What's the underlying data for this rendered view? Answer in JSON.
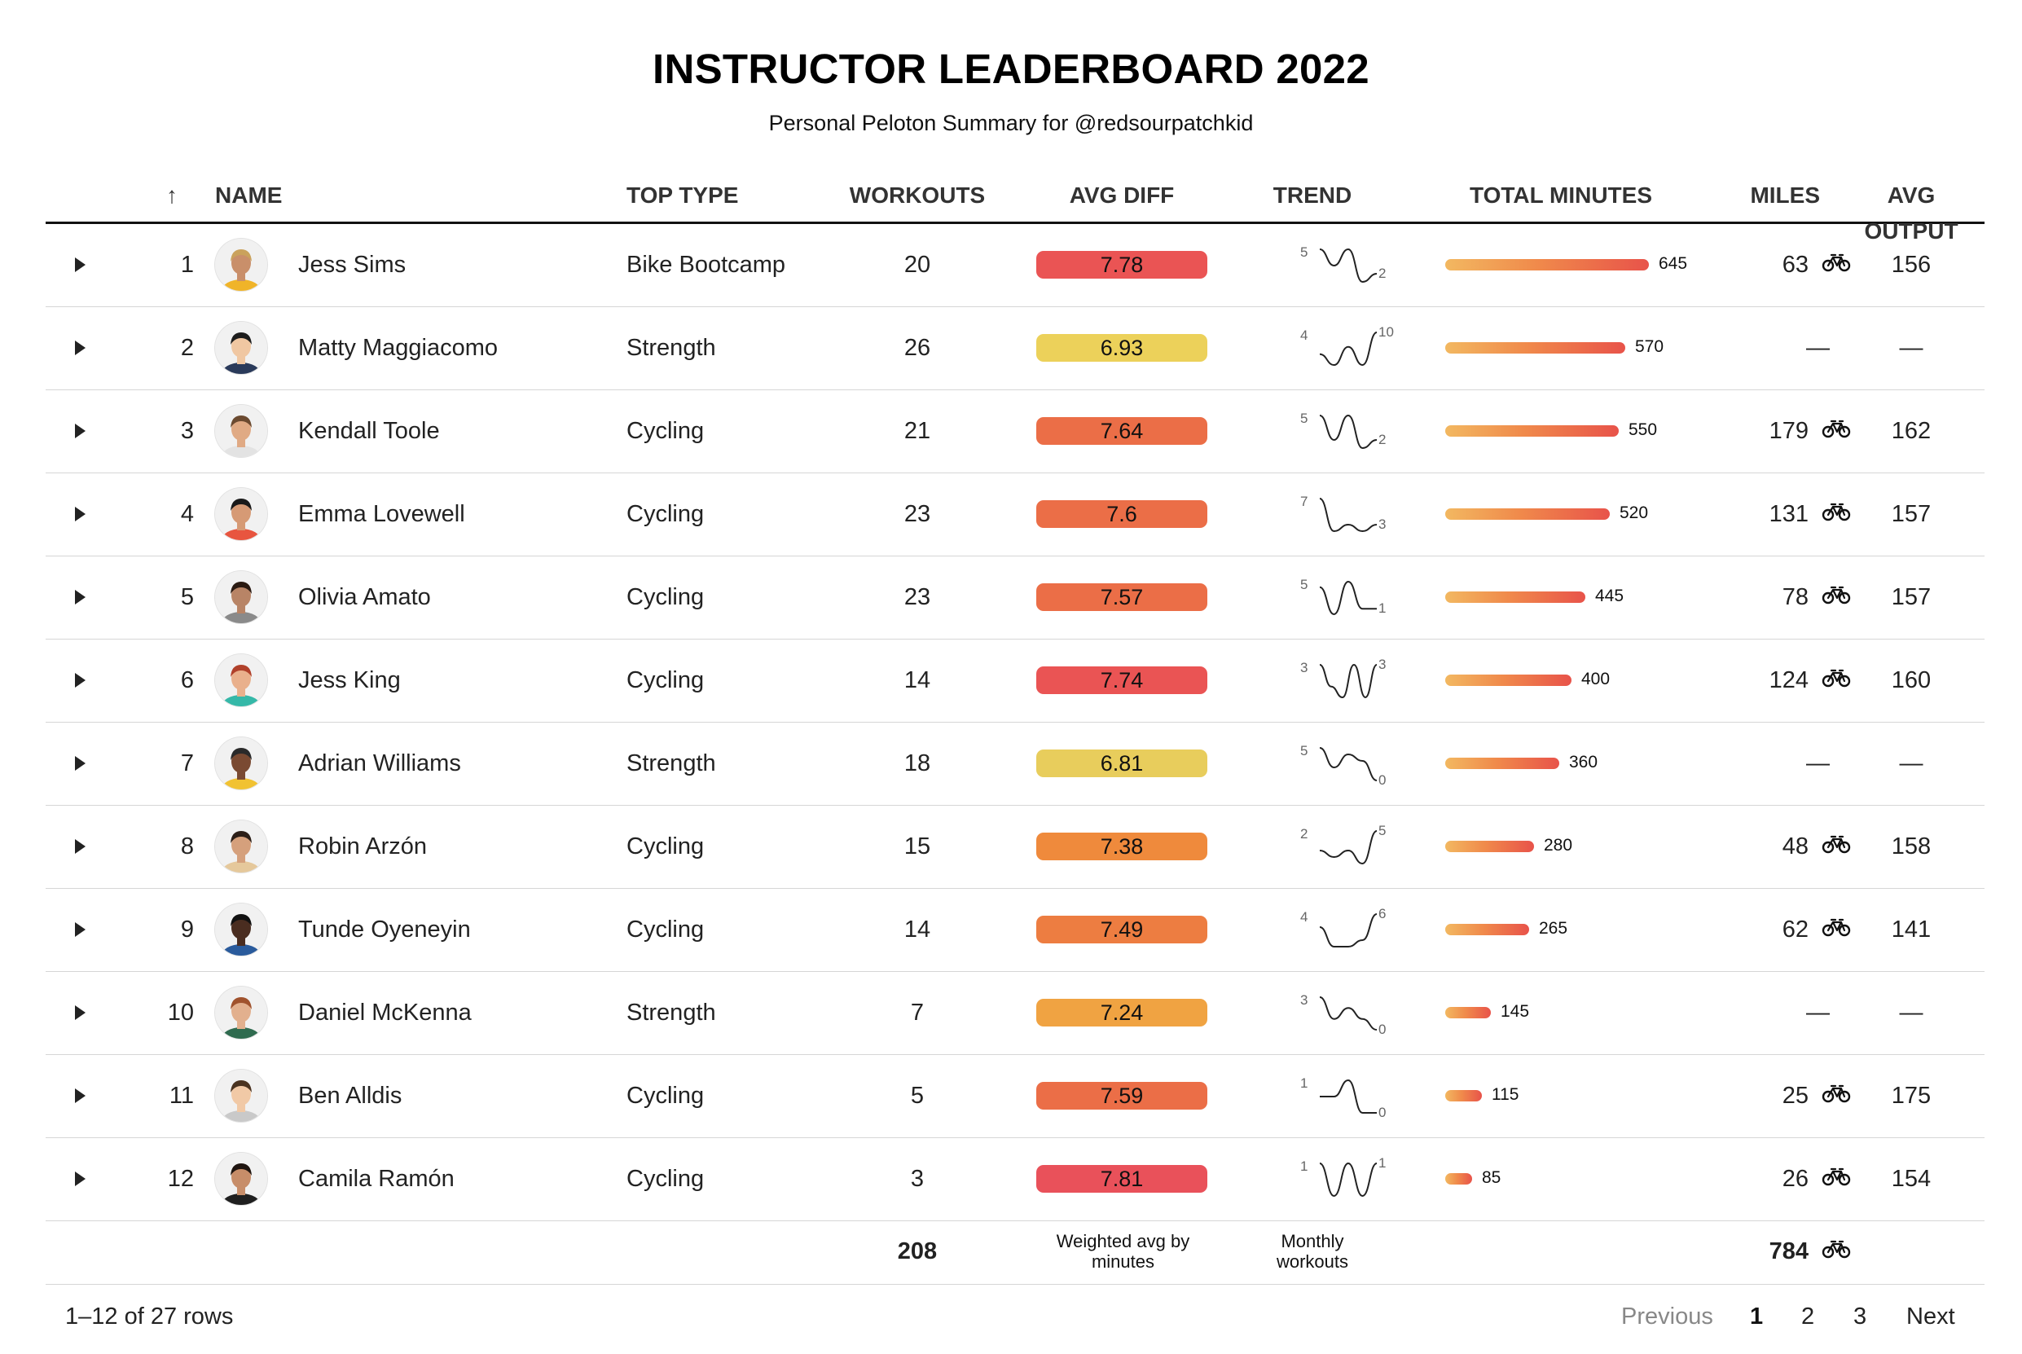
{
  "title": "INSTRUCTOR LEADERBOARD 2022",
  "subtitle": "Personal Peloton Summary for @redsourpatchkid",
  "colors": {
    "diff_red": "#ea5454",
    "diff_orange": "#eb6e47",
    "diff_orange2": "#ef8a3c",
    "diff_amber": "#f0a342",
    "diff_yellow": "#ecd15a",
    "bar_start": "#f2b861",
    "bar_end": "#e8534a"
  },
  "columns": {
    "sort_indicator": "↑",
    "name": "NAME",
    "top_type": "TOP TYPE",
    "workouts": "WORKOUTS",
    "avg_diff": "AVG DIFF",
    "trend": "TREND",
    "total_minutes": "TOTAL MINUTES",
    "miles": "MILES",
    "avg_output": "AVG OUTPUT"
  },
  "rows": [
    {
      "rank": "1",
      "name": "Jess Sims",
      "top_type": "Bike Bootcamp",
      "workouts": "20",
      "avg_diff": "7.78",
      "diff_color": "#ea5454",
      "trend_start": "5",
      "trend_end": "2",
      "trend": [
        5,
        3,
        5,
        1,
        2
      ],
      "minutes": "645",
      "minutes_value": 645,
      "miles": "63",
      "avg_output": "156"
    },
    {
      "rank": "2",
      "name": "Matty Maggiacomo",
      "top_type": "Strength",
      "workouts": "26",
      "avg_diff": "6.93",
      "diff_color": "#ecd15a",
      "trend_start": "4",
      "trend_end": "10",
      "trend": [
        4,
        1,
        6,
        1,
        10
      ],
      "minutes": "570",
      "minutes_value": 570,
      "miles": "—",
      "avg_output": "—"
    },
    {
      "rank": "3",
      "name": "Kendall Toole",
      "top_type": "Cycling",
      "workouts": "21",
      "avg_diff": "7.64",
      "diff_color": "#eb6e47",
      "trend_start": "5",
      "trend_end": "2",
      "trend": [
        5,
        2,
        5,
        1,
        2
      ],
      "minutes": "550",
      "minutes_value": 550,
      "miles": "179",
      "avg_output": "162"
    },
    {
      "rank": "4",
      "name": "Emma Lovewell",
      "top_type": "Cycling",
      "workouts": "23",
      "avg_diff": "7.6",
      "diff_color": "#eb6e47",
      "trend_start": "7",
      "trend_end": "3",
      "trend": [
        7,
        2,
        3,
        2,
        3
      ],
      "minutes": "520",
      "minutes_value": 520,
      "miles": "131",
      "avg_output": "157"
    },
    {
      "rank": "5",
      "name": "Olivia Amato",
      "top_type": "Cycling",
      "workouts": "23",
      "avg_diff": "7.57",
      "diff_color": "#eb6e47",
      "trend_start": "5",
      "trend_end": "1",
      "trend": [
        5,
        0,
        6,
        1,
        1
      ],
      "minutes": "445",
      "minutes_value": 445,
      "miles": "78",
      "avg_output": "157"
    },
    {
      "rank": "6",
      "name": "Jess King",
      "top_type": "Cycling",
      "workouts": "14",
      "avg_diff": "7.74",
      "diff_color": "#ea5454",
      "trend_start": "3",
      "trend_end": "3",
      "trend": [
        3,
        1,
        0,
        3,
        0,
        3
      ],
      "minutes": "400",
      "minutes_value": 400,
      "miles": "124",
      "avg_output": "160"
    },
    {
      "rank": "7",
      "name": "Adrian Williams",
      "top_type": "Strength",
      "workouts": "18",
      "avg_diff": "6.81",
      "diff_color": "#e8cd5c",
      "trend_start": "5",
      "trend_end": "0",
      "trend": [
        5,
        2,
        4,
        3,
        0
      ],
      "minutes": "360",
      "minutes_value": 360,
      "miles": "—",
      "avg_output": "—"
    },
    {
      "rank": "8",
      "name": "Robin Arzón",
      "top_type": "Cycling",
      "workouts": "15",
      "avg_diff": "7.38",
      "diff_color": "#ef8a3c",
      "trend_start": "2",
      "trend_end": "5",
      "trend": [
        2,
        1,
        2,
        0,
        5
      ],
      "minutes": "280",
      "minutes_value": 280,
      "miles": "48",
      "avg_output": "158"
    },
    {
      "rank": "9",
      "name": "Tunde Oyeneyin",
      "top_type": "Cycling",
      "workouts": "14",
      "avg_diff": "7.49",
      "diff_color": "#ed7d41",
      "trend_start": "4",
      "trend_end": "6",
      "trend": [
        4,
        1,
        1,
        2,
        6
      ],
      "minutes": "265",
      "minutes_value": 265,
      "miles": "62",
      "avg_output": "141"
    },
    {
      "rank": "10",
      "name": "Daniel McKenna",
      "top_type": "Strength",
      "workouts": "7",
      "avg_diff": "7.24",
      "diff_color": "#f0a342",
      "trend_start": "3",
      "trend_end": "0",
      "trend": [
        3,
        1,
        2,
        1,
        0
      ],
      "minutes": "145",
      "minutes_value": 145,
      "miles": "—",
      "avg_output": "—"
    },
    {
      "rank": "11",
      "name": "Ben Alldis",
      "top_type": "Cycling",
      "workouts": "5",
      "avg_diff": "7.59",
      "diff_color": "#eb6e47",
      "trend_start": "1",
      "trend_end": "0",
      "trend": [
        1,
        1,
        2,
        0,
        0
      ],
      "minutes": "115",
      "minutes_value": 115,
      "miles": "25",
      "avg_output": "175"
    },
    {
      "rank": "12",
      "name": "Camila Ramón",
      "top_type": "Cycling",
      "workouts": "3",
      "avg_diff": "7.81",
      "diff_color": "#e9515a",
      "trend_start": "1",
      "trend_end": "1",
      "trend": [
        1,
        0,
        1,
        0,
        1
      ],
      "minutes": "85",
      "minutes_value": 85,
      "miles": "26",
      "avg_output": "154"
    }
  ],
  "minutes_max": 645,
  "footer": {
    "workouts_total": "208",
    "avg_diff_note": "Weighted avg by minutes",
    "trend_note": "Monthly workouts",
    "miles_total": "784"
  },
  "pagination": {
    "range_text": "1–12 of 27 rows",
    "previous": "Previous",
    "pages": [
      "1",
      "2",
      "3"
    ],
    "current_page": "1",
    "next": "Next"
  },
  "icons": {
    "expand": "play-triangle-icon",
    "bike": "bicycle-icon"
  }
}
